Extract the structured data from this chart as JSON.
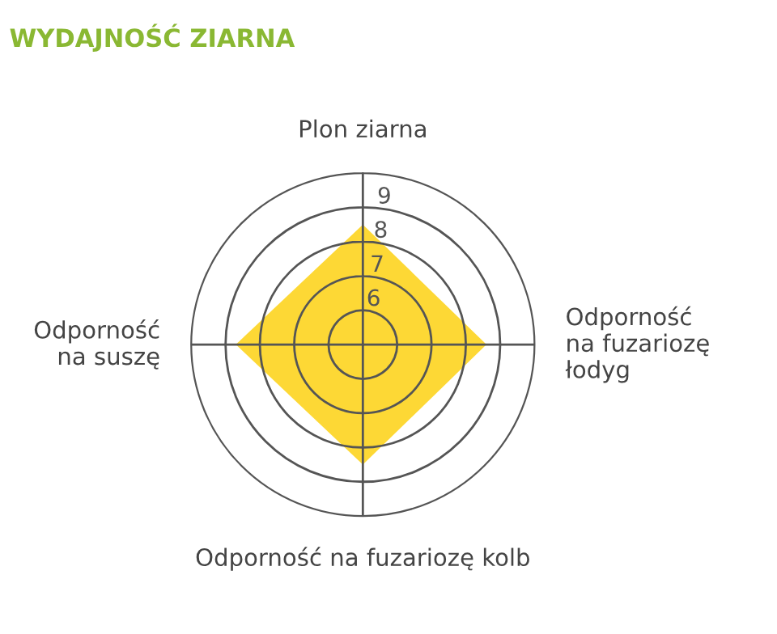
{
  "chart_data": {
    "type": "radar",
    "title": "WYDAJNOŚĆ ZIARNA",
    "categories": [
      "Plon ziarna",
      "Odporność\nna fuzariozę\nłodyg",
      "Odporność na fuzariozę kolb",
      "Odporność\nna suszę"
    ],
    "series": [
      {
        "color": "#fdd835",
        "values": [
          8.5,
          8.6,
          8.5,
          8.7
        ]
      }
    ],
    "ylim": [
      5,
      10
    ],
    "yticks": [
      6,
      7,
      8,
      9
    ],
    "grid": true
  }
}
